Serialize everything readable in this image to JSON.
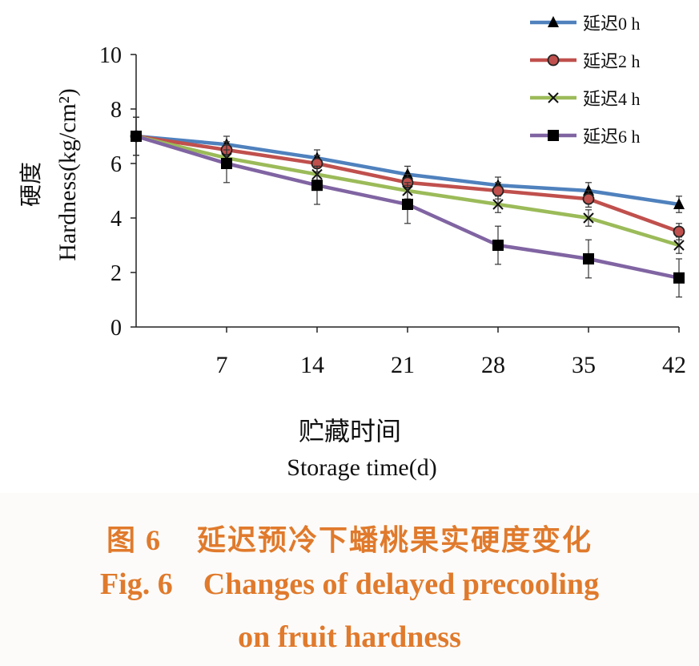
{
  "chart_data": {
    "type": "line",
    "xlabel_cn": "贮藏时间",
    "xlabel_en": "Storage time(d)",
    "ylabel_cn": "硬度",
    "ylabel_en": "Hardness(kg/cm²)",
    "ylim": [
      0,
      10
    ],
    "yticks": [
      0,
      2,
      4,
      6,
      8,
      10
    ],
    "x": [
      0,
      7,
      14,
      21,
      28,
      35,
      42
    ],
    "xtick_labels": [
      "7",
      "14",
      "21",
      "28",
      "35",
      "42"
    ],
    "legend_position": "top-right",
    "series": [
      {
        "name": "延迟0 h",
        "color": "#4f81bd",
        "marker": "triangle",
        "values": [
          7.0,
          6.7,
          6.2,
          5.6,
          5.2,
          5.0,
          4.5
        ],
        "errors": [
          0.7,
          0.3,
          0.3,
          0.3,
          0.3,
          0.3,
          0.3
        ]
      },
      {
        "name": "延迟2 h",
        "color": "#c0504d",
        "marker": "circle",
        "values": [
          7.0,
          6.5,
          6.0,
          5.3,
          5.0,
          4.7,
          3.5
        ],
        "errors": [
          0.7,
          0.3,
          0.3,
          0.3,
          0.3,
          0.3,
          0.3
        ]
      },
      {
        "name": "延迟4 h",
        "color": "#9bbb59",
        "marker": "cross",
        "values": [
          7.0,
          6.2,
          5.6,
          5.0,
          4.5,
          4.0,
          3.0
        ],
        "errors": [
          0.7,
          0.3,
          0.3,
          0.3,
          0.3,
          0.3,
          0.3
        ]
      },
      {
        "name": "延迟6 h",
        "color": "#8064a2",
        "marker": "square",
        "values": [
          7.0,
          6.0,
          5.2,
          4.5,
          3.0,
          2.5,
          1.8
        ],
        "errors": [
          0.7,
          0.7,
          0.7,
          0.7,
          0.7,
          0.7,
          0.7
        ]
      }
    ]
  },
  "caption": {
    "cn": "图 6    延迟预冷下蟠桃果实硬度变化",
    "en_line1": "Fig. 6    Changes of delayed precooling",
    "en_line2": "on fruit hardness"
  }
}
